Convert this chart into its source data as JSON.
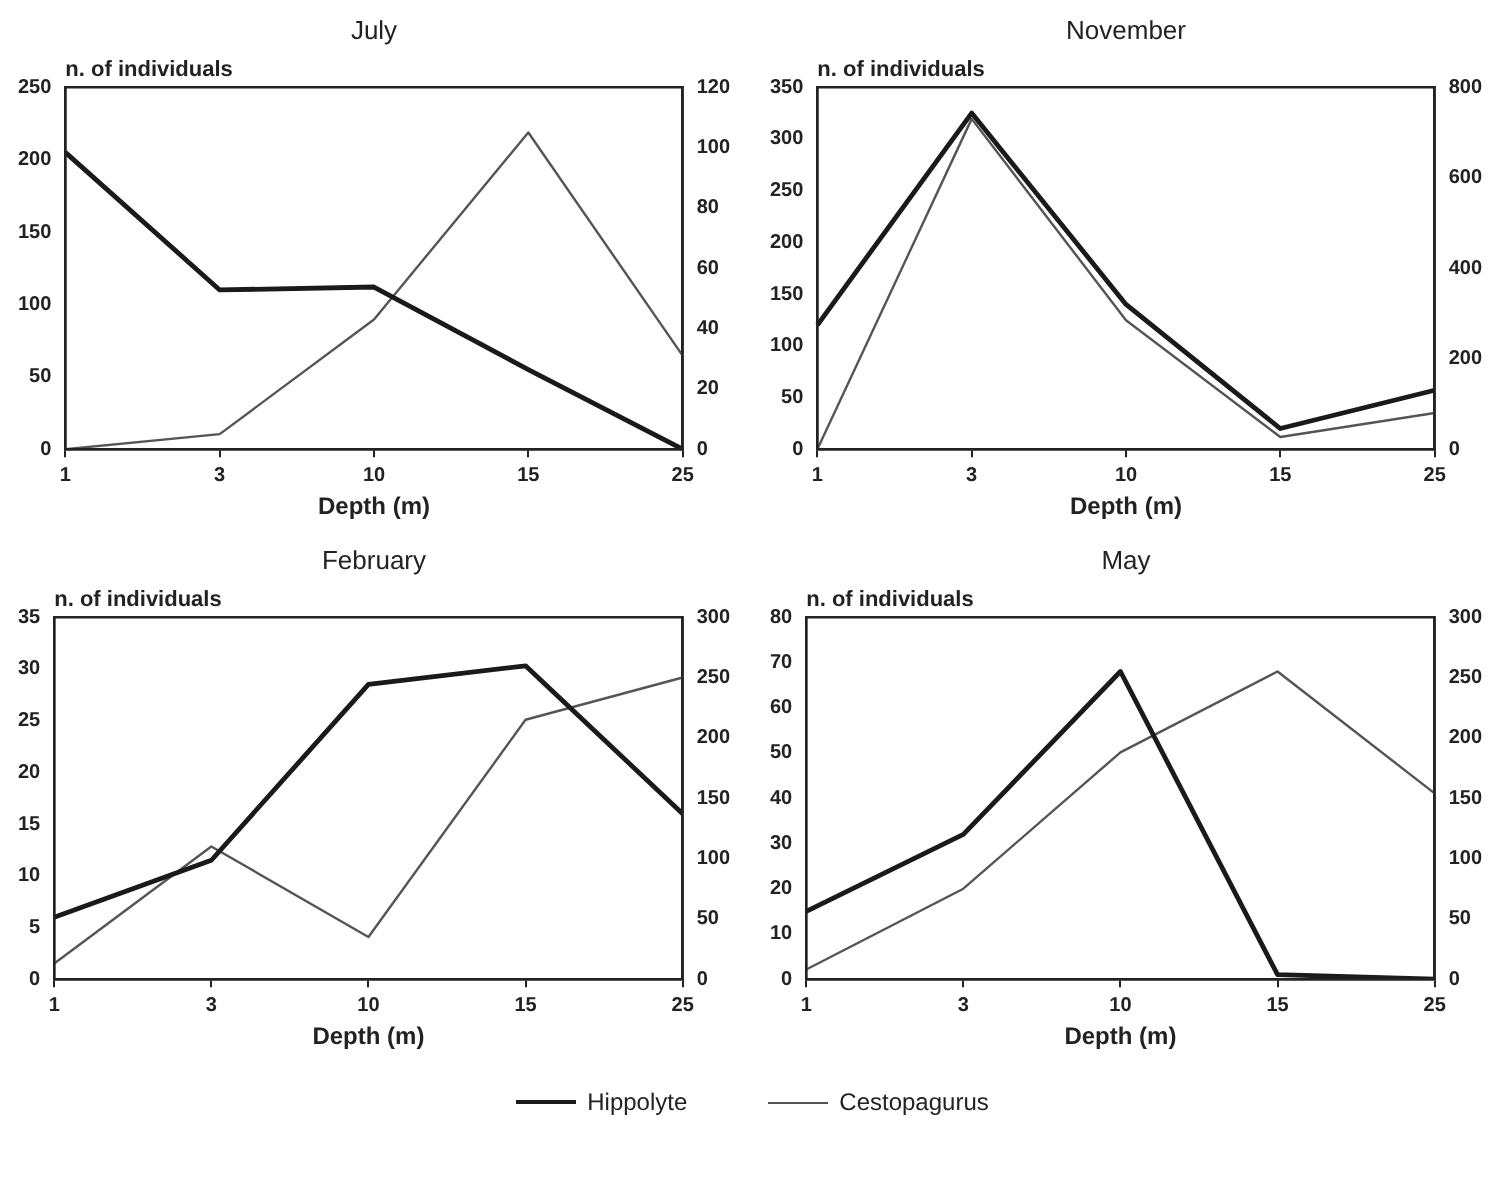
{
  "chart_data": [
    {
      "type": "line",
      "title": "July",
      "ylabel": "n. of individuals",
      "xlabel": "Depth (m)",
      "categories": [
        "1",
        "3",
        "10",
        "15",
        "25"
      ],
      "series": [
        {
          "name": "Hippolyte",
          "color": "#1a1a1a",
          "values": [
            205,
            110,
            112,
            55,
            0
          ]
        },
        {
          "name": "Cestopagurus",
          "color": "#555555",
          "axis": "y2",
          "values": [
            0,
            5,
            43,
            105,
            31
          ]
        }
      ],
      "ylim": [
        0,
        250
      ],
      "yticks": [
        0,
        50,
        100,
        150,
        200,
        250
      ],
      "y2lim": [
        0,
        120
      ],
      "y2ticks": [
        0,
        20,
        40,
        60,
        80,
        100,
        120
      ],
      "grid": false,
      "legend": "bottom"
    },
    {
      "type": "line",
      "title": "November",
      "ylabel": "n. of individuals",
      "xlabel": "Depth (m)",
      "categories": [
        "1",
        "3",
        "10",
        "15",
        "25"
      ],
      "series": [
        {
          "color": "#1a1a1a",
          "values": [
            120,
            325,
            140,
            20,
            57
          ]
        },
        {
          "color": "#555555",
          "axis": "y2",
          "values": [
            0,
            730,
            285,
            27,
            80
          ]
        }
      ],
      "ylim": [
        0,
        350
      ],
      "yticks": [
        0,
        50,
        100,
        150,
        200,
        250,
        300,
        350
      ],
      "y2lim": [
        0,
        800
      ],
      "y2ticks": [
        0,
        200,
        400,
        600,
        800
      ],
      "grid": false
    },
    {
      "type": "line",
      "title": "February",
      "ylabel": "n. of individuals",
      "xlabel": "Depth (m)",
      "categories": [
        "1",
        "3",
        "10",
        "15",
        "25"
      ],
      "series": [
        {
          "color": "#1a1a1a",
          "values": [
            6,
            11.5,
            28.5,
            30.3,
            16
          ]
        },
        {
          "color": "#555555",
          "axis": "y2",
          "values": [
            13,
            110,
            35,
            215,
            250
          ]
        }
      ],
      "ylim": [
        0,
        35
      ],
      "yticks": [
        0,
        5,
        10,
        15,
        20,
        25,
        30,
        35
      ],
      "y2lim": [
        0,
        300
      ],
      "y2ticks": [
        0,
        50,
        100,
        150,
        200,
        250,
        300
      ],
      "grid": false
    },
    {
      "type": "line",
      "title": "May",
      "ylabel": "n. of individuals",
      "xlabel": "Depth (m)",
      "categories": [
        "1",
        "3",
        "10",
        "15",
        "25"
      ],
      "series": [
        {
          "color": "#1a1a1a",
          "values": [
            15,
            32,
            68,
            1,
            0
          ]
        },
        {
          "color": "#555555",
          "axis": "y2",
          "values": [
            8,
            75,
            188,
            255,
            154
          ]
        }
      ],
      "ylim": [
        0,
        80
      ],
      "yticks": [
        0,
        10,
        20,
        30,
        40,
        50,
        60,
        70,
        80
      ],
      "y2lim": [
        0,
        300
      ],
      "y2ticks": [
        0,
        50,
        100,
        150,
        200,
        250,
        300
      ],
      "grid": false
    }
  ]
}
